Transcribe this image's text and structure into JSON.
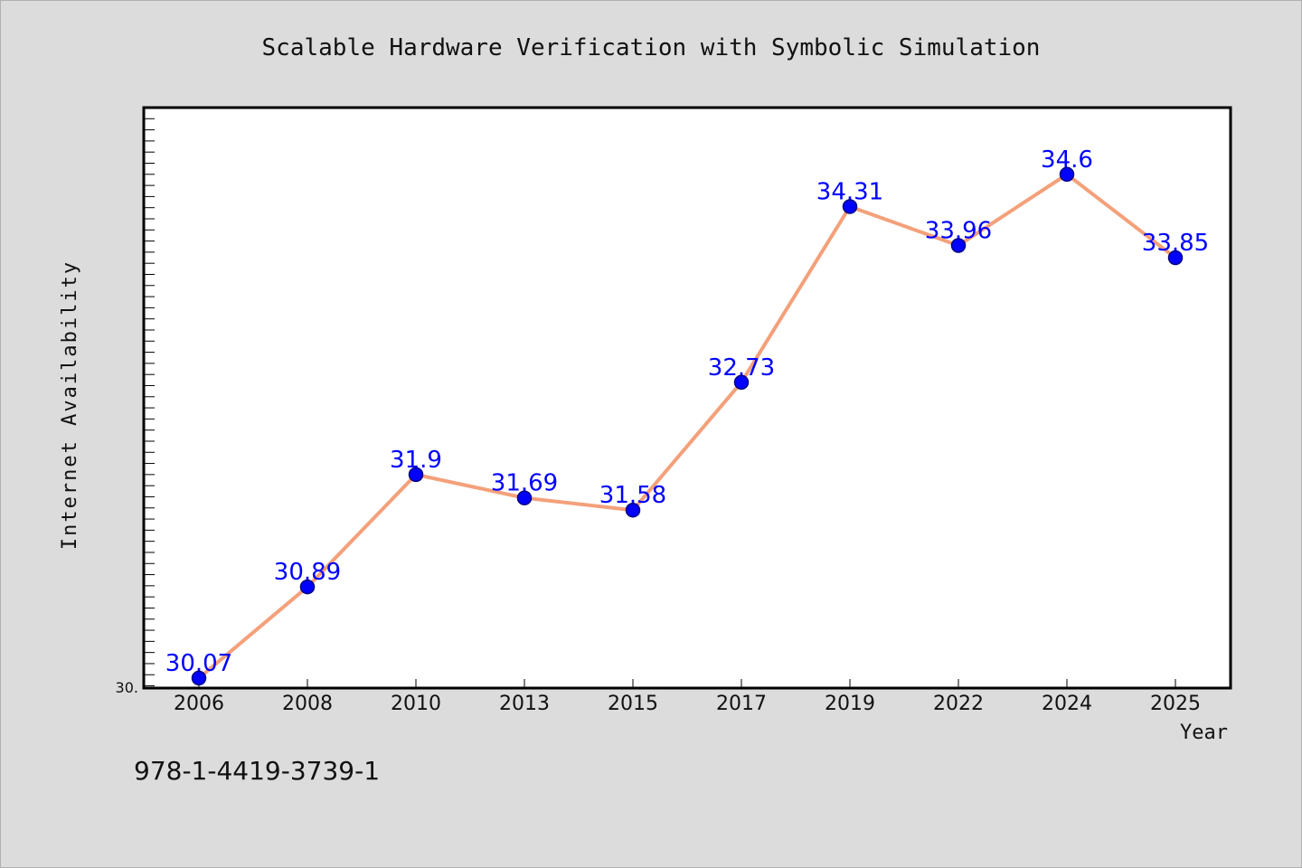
{
  "footer": {
    "code": "978-1-4419-3739-1"
  },
  "chart_data": {
    "type": "line",
    "title": "Scalable Hardware Verification with Symbolic Simulation",
    "xlabel": "Year",
    "ylabel": "Internet Availability",
    "categories": [
      "2006",
      "2008",
      "2010",
      "2013",
      "2015",
      "2017",
      "2019",
      "2022",
      "2024",
      "2025"
    ],
    "series": [
      {
        "values": [
          30.07,
          30.89,
          31.9,
          31.69,
          31.58,
          32.73,
          34.31,
          33.96,
          34.6,
          33.85
        ],
        "data_labels": [
          "30.07",
          "30.89",
          "31.9",
          "31.69",
          "31.58",
          "32.73",
          "34.31",
          "33.96",
          "34.6",
          "33.85"
        ]
      }
    ],
    "y_tick_label": "30.",
    "ylim": [
      29.98,
      35.2
    ],
    "grid": false,
    "colors": {
      "line": "#f4a07a",
      "marker": "#0000ff",
      "marker_edge": "#000080",
      "data_label": "#0000ff",
      "plot_background": "#ffffff",
      "figure_background": "#dcdcdc"
    }
  }
}
